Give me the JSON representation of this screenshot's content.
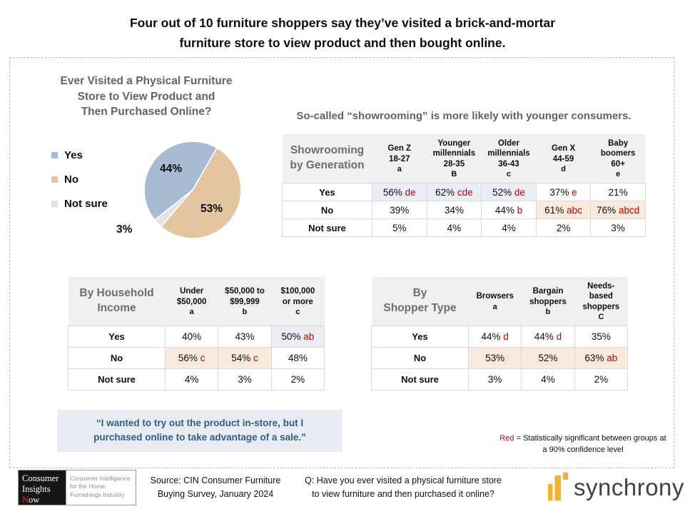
{
  "page": {
    "title": "Four out of 10 furniture shoppers say they’ve visited a brick-and-mortar\nfurniture store to view product and then bought online."
  },
  "colors": {
    "pie_yes": "#a7bbd3",
    "pie_no": "#e3c59f",
    "pie_not_sure": "#e3e3e3",
    "significance_red": "#c00000",
    "highlight_blue": "#ebedf5",
    "highlight_tan": "#f8ebdb",
    "quote_text": "#2d5f80",
    "quote_bg": "#e8ecf2",
    "synchrony_gold": "#f3b229"
  },
  "sections": {
    "showrooming_heading": "So-called “showrooming” is more likely with younger consumers.",
    "quote": "“I wanted to try out the product in-store, but I\npurchased online to take advantage of a sale.”",
    "note_red": "Red",
    "note_rest": " = Statistically significant between groups at a 90% confidence level"
  },
  "chart_data": [
    {
      "id": "pie",
      "type": "pie",
      "title": "Ever Visited a Physical Furniture\nStore to View Product and\nThen Purchased Online?",
      "legend_position": "left",
      "start_angle_deg": 30,
      "draw_order": [
        "No",
        "Not sure",
        "Yes"
      ],
      "slices": [
        {
          "label": "Yes",
          "value": 44,
          "pct_label": "44%",
          "color": "#a7bbd3"
        },
        {
          "label": "No",
          "value": 53,
          "pct_label": "53%",
          "color": "#e3c59f"
        },
        {
          "label": "Not sure",
          "value": 3,
          "pct_label": "3%",
          "color": "#e3e3e3"
        }
      ]
    },
    {
      "id": "generation",
      "type": "table",
      "title": "Showrooming\nby Generation",
      "columns": [
        {
          "lines": [
            "Gen Z",
            "18-27"
          ],
          "letter": "a"
        },
        {
          "lines": [
            "Younger",
            "millennials",
            "28-35"
          ],
          "letter": "B"
        },
        {
          "lines": [
            "Older",
            "millennials",
            "36-43"
          ],
          "letter": "c"
        },
        {
          "lines": [
            "Gen X",
            "44-59"
          ],
          "letter": "d"
        },
        {
          "lines": [
            "Baby",
            "boomers",
            "60+"
          ],
          "letter": "e"
        }
      ],
      "rows": [
        {
          "label": "Yes",
          "cells": [
            {
              "v": "56%",
              "s": "de",
              "h": "blue"
            },
            {
              "v": "62%",
              "s": "cde",
              "h": "blue"
            },
            {
              "v": "52%",
              "s": "de",
              "h": "blue"
            },
            {
              "v": "37%",
              "s": "e"
            },
            {
              "v": "21%"
            }
          ]
        },
        {
          "label": "No",
          "cells": [
            {
              "v": "39%"
            },
            {
              "v": "34%"
            },
            {
              "v": "44%",
              "s": "b"
            },
            {
              "v": "61%",
              "s": "abc",
              "h": "tan"
            },
            {
              "v": "76%",
              "s": "abcd",
              "h": "tan"
            }
          ]
        },
        {
          "label": "Not sure",
          "cells": [
            {
              "v": "5%"
            },
            {
              "v": "4%"
            },
            {
              "v": "4%"
            },
            {
              "v": "2%"
            },
            {
              "v": "3%"
            }
          ]
        }
      ]
    },
    {
      "id": "income",
      "type": "table",
      "title": "By Household\nIncome",
      "columns": [
        {
          "lines": [
            "Under",
            "$50,000"
          ],
          "letter": "a"
        },
        {
          "lines": [
            "$50,000  to",
            "$99,999"
          ],
          "letter": "b"
        },
        {
          "lines": [
            "$100,000",
            "or more"
          ],
          "letter": "c"
        }
      ],
      "rows": [
        {
          "label": "Yes",
          "cells": [
            {
              "v": "40%"
            },
            {
              "v": "43%"
            },
            {
              "v": "50%",
              "s": "ab",
              "h": "blue"
            }
          ]
        },
        {
          "label": "No",
          "cells": [
            {
              "v": "56%",
              "s": "c",
              "h": "tan"
            },
            {
              "v": "54%",
              "s": "c",
              "h": "tan"
            },
            {
              "v": "48%"
            }
          ]
        },
        {
          "label": "Not sure",
          "cells": [
            {
              "v": "4%"
            },
            {
              "v": "3%"
            },
            {
              "v": "2%"
            }
          ]
        }
      ]
    },
    {
      "id": "shopper",
      "type": "table",
      "title": "By\nShopper Type",
      "columns": [
        {
          "lines": [
            "Browsers"
          ],
          "letter": "a"
        },
        {
          "lines": [
            "Bargain",
            "shoppers"
          ],
          "letter": "b"
        },
        {
          "lines": [
            "Needs-",
            "based",
            "shoppers"
          ],
          "letter": "C"
        }
      ],
      "rows": [
        {
          "label": "Yes",
          "cells": [
            {
              "v": "44%",
              "s": "d"
            },
            {
              "v": "44%",
              "s": "d"
            },
            {
              "v": "35%"
            }
          ]
        },
        {
          "label": "No",
          "cells": [
            {
              "v": "53%",
              "h": "tan"
            },
            {
              "v": "52%",
              "h": "tan"
            },
            {
              "v": "63%",
              "s": "ab",
              "h": "tan"
            }
          ]
        },
        {
          "label": "Not sure",
          "cells": [
            {
              "v": "3%"
            },
            {
              "v": "4%"
            },
            {
              "v": "2%"
            }
          ]
        }
      ]
    }
  ],
  "footer": {
    "logo": {
      "line1": "Consumer",
      "line2": "Insights",
      "line3_red": "N",
      "line3_rest": "ow",
      "tagline": "Consumer Intelligence\nfor the Home\nFurnishings Industry"
    },
    "source": "Source: CIN Consumer Furniture\nBuying Survey, January 2024",
    "question": "Q: Have you ever visited a physical furniture store\nto view furniture and then  purchased it online?",
    "brand": "synchrony"
  }
}
